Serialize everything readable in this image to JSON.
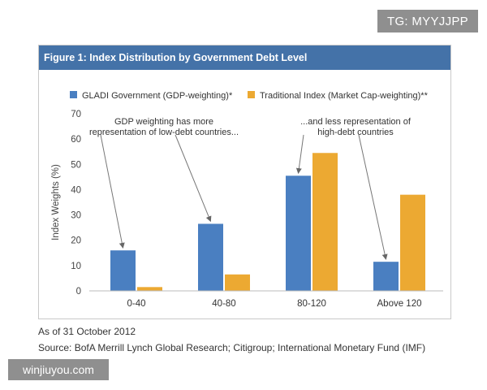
{
  "watermarks": {
    "top": "TG: MYYJJPP",
    "bottom": "winjiuyou.com"
  },
  "figure": {
    "title": "Figure 1: Index Distribution by Government Debt Level"
  },
  "chart_data": {
    "type": "bar",
    "categories": [
      "0-40",
      "40-80",
      "80-120",
      "Above 120"
    ],
    "series": [
      {
        "name": "GLADI Government (GDP-weighting)*",
        "values": [
          16,
          26.5,
          45.5,
          11.5
        ],
        "color": "#4a7fc1"
      },
      {
        "name": "Traditional Index (Market Cap-weighting)**",
        "values": [
          1.5,
          6.5,
          54.5,
          38
        ],
        "color": "#eca932"
      }
    ],
    "ylabel": "Index Weights (%)",
    "xlabel": "",
    "ylim": [
      0,
      70
    ],
    "yticks": [
      0,
      10,
      20,
      30,
      40,
      50,
      60,
      70
    ],
    "grid": false,
    "legend_position": "top",
    "annotations": [
      {
        "lines": [
          "GDP weighting has more",
          "representation of low-debt countries..."
        ]
      },
      {
        "lines": [
          "...and less representation of",
          "high-debt countries"
        ]
      }
    ]
  },
  "footer": {
    "date_note": "As of 31 October 2012",
    "source": "Source: BofA Merrill Lynch Global Research; Citigroup; International Monetary Fund (IMF)"
  }
}
